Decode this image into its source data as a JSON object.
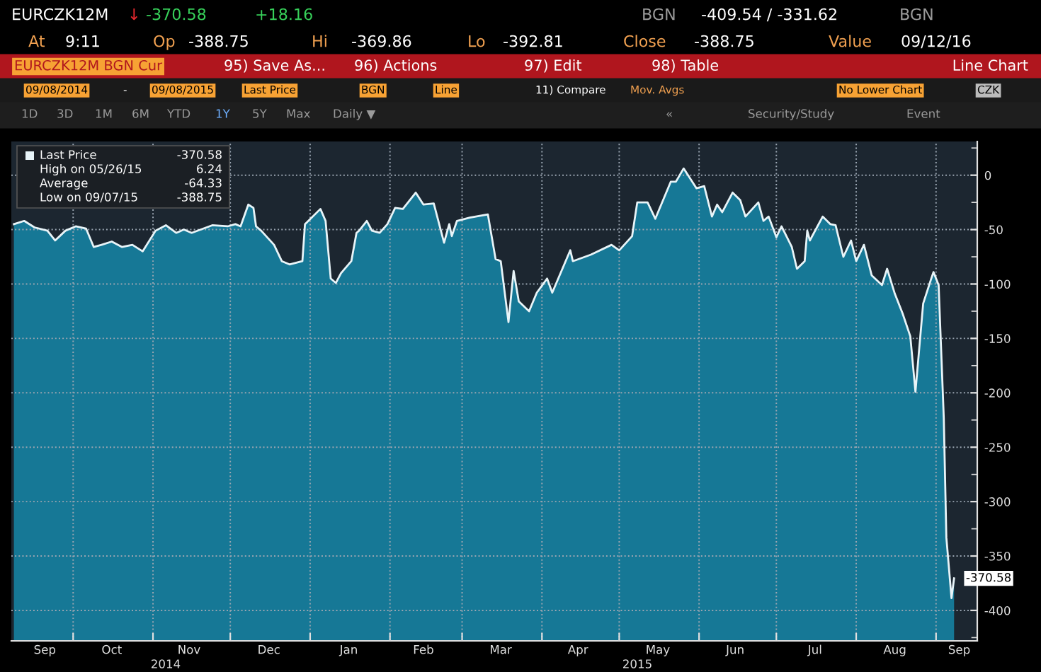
{
  "chart_data": {
    "type": "line",
    "title": "EURCZK12M",
    "x": [
      "2014-09-08",
      "2014-09-12",
      "2014-09-16",
      "2014-09-21",
      "2014-09-24",
      "2014-09-28",
      "2014-10-02",
      "2014-10-06",
      "2014-10-09",
      "2014-10-12",
      "2014-10-16",
      "2014-10-20",
      "2014-10-24",
      "2014-10-28",
      "2014-11-02",
      "2014-11-06",
      "2014-11-10",
      "2014-11-13",
      "2014-11-16",
      "2014-11-24",
      "2014-11-30",
      "2014-12-03",
      "2014-12-05",
      "2014-12-08",
      "2014-12-10",
      "2014-12-11",
      "2014-12-13",
      "2014-12-18",
      "2014-12-21",
      "2014-12-24",
      "2014-12-29",
      "2014-12-30",
      "2015-01-05",
      "2015-01-07",
      "2015-01-09",
      "2015-01-11",
      "2015-01-13",
      "2015-01-17",
      "2015-01-19",
      "2015-01-20",
      "2015-01-23",
      "2015-01-25",
      "2015-01-28",
      "2015-01-31",
      "2015-02-03",
      "2015-02-06",
      "2015-02-11",
      "2015-02-14",
      "2015-02-18",
      "2015-02-22",
      "2015-02-24",
      "2015-02-25",
      "2015-02-27",
      "2015-03-04",
      "2015-03-11",
      "2015-03-14",
      "2015-03-16",
      "2015-03-19",
      "2015-03-21",
      "2015-03-23",
      "2015-03-27",
      "2015-03-30",
      "2015-04-03",
      "2015-04-05",
      "2015-04-12",
      "2015-04-13",
      "2015-04-20",
      "2015-04-28",
      "2015-05-01",
      "2015-05-06",
      "2015-05-08",
      "2015-05-12",
      "2015-05-15",
      "2015-05-21",
      "2015-05-23",
      "2015-05-26",
      "2015-05-31",
      "2015-06-03",
      "2015-06-06",
      "2015-06-08",
      "2015-06-10",
      "2015-06-14",
      "2015-06-17",
      "2015-06-19",
      "2015-06-24",
      "2015-06-26",
      "2015-06-28",
      "2015-07-01",
      "2015-07-03",
      "2015-07-07",
      "2015-07-09",
      "2015-07-12",
      "2015-07-13",
      "2015-07-14",
      "2015-07-19",
      "2015-07-22",
      "2015-07-24",
      "2015-07-27",
      "2015-07-30",
      "2015-08-01",
      "2015-08-04",
      "2015-08-07",
      "2015-08-11",
      "2015-08-13",
      "2015-08-16",
      "2015-08-19",
      "2015-08-22",
      "2015-08-24",
      "2015-08-27",
      "2015-08-30",
      "2015-08-31",
      "2015-09-02",
      "2015-09-04",
      "2015-09-05",
      "2015-09-07",
      "2015-09-08"
    ],
    "series": [
      {
        "name": "Last Price",
        "color": "#e8f4f8",
        "values": [
          -45,
          -42,
          -48,
          -51,
          -60,
          -51,
          -47,
          -49,
          -66,
          -64,
          -61,
          -66,
          -64,
          -70,
          -51,
          -46,
          -53,
          -50,
          -53,
          -46,
          -47,
          -45,
          -47,
          -27,
          -30,
          -47,
          -51,
          -64,
          -79,
          -82,
          -79,
          -45,
          -31,
          -42,
          -95,
          -99,
          -90,
          -79,
          -53,
          -51,
          -42,
          -51,
          -53,
          -45,
          -30,
          -31,
          -16,
          -27,
          -26,
          -62,
          -45,
          -56,
          -42,
          -39,
          -36,
          -77,
          -79,
          -135,
          -88,
          -116,
          -125,
          -108,
          -95,
          -108,
          -69,
          -79,
          -73,
          -64,
          -69,
          -56,
          -25,
          -25,
          -40,
          -6,
          -6,
          6.24,
          -12,
          -10,
          -38,
          -27,
          -34,
          -16,
          -23,
          -38,
          -25,
          -42,
          -38,
          -57,
          -47,
          -66,
          -86,
          -79,
          -51,
          -60,
          -38,
          -45,
          -46,
          -75,
          -60,
          -79,
          -64,
          -92,
          -101,
          -86,
          -109,
          -127,
          -148,
          -199,
          -118,
          -96,
          -89,
          -101,
          -223,
          -333,
          -388.75,
          -370.58
        ]
      }
    ],
    "xlim": [
      "2014-09-07",
      "2015-09-17"
    ],
    "xticks": [
      {
        "value": "2014-09-20",
        "label": "Sep"
      },
      {
        "value": "2014-10-01",
        "label": null
      },
      {
        "value": "2014-10-16",
        "label": "Oct"
      },
      {
        "value": "2014-11-01",
        "label": null
      },
      {
        "value": "2014-11-15",
        "label": "Nov"
      },
      {
        "value": "2014-12-01",
        "label": null
      },
      {
        "value": "2014-12-16",
        "label": "Dec"
      },
      {
        "value": "2015-01-01",
        "label": null
      },
      {
        "value": "2015-01-16",
        "label": "Jan"
      },
      {
        "value": "2015-02-01",
        "label": null
      },
      {
        "value": "2015-02-14",
        "label": "Feb"
      },
      {
        "value": "2015-03-01",
        "label": null
      },
      {
        "value": "2015-03-16",
        "label": "Mar"
      },
      {
        "value": "2015-04-01",
        "label": null
      },
      {
        "value": "2015-04-15",
        "label": "Apr"
      },
      {
        "value": "2015-05-01",
        "label": null
      },
      {
        "value": "2015-05-16",
        "label": "May"
      },
      {
        "value": "2015-06-01",
        "label": null
      },
      {
        "value": "2015-06-15",
        "label": "Jun"
      },
      {
        "value": "2015-07-01",
        "label": null
      },
      {
        "value": "2015-07-16",
        "label": "Jul"
      },
      {
        "value": "2015-08-01",
        "label": null
      },
      {
        "value": "2015-08-16",
        "label": "Aug"
      },
      {
        "value": "2015-09-01",
        "label": null
      },
      {
        "value": "2015-09-10",
        "label": "Sep"
      }
    ],
    "ylim": [
      -428,
      31
    ],
    "yticks": [
      {
        "value": 25,
        "label": null
      },
      0,
      {
        "value": -25,
        "label": null
      },
      -50,
      {
        "value": -75,
        "label": null
      },
      -100,
      {
        "value": -125,
        "label": null
      },
      -150,
      {
        "value": -175,
        "label": null
      },
      -200,
      {
        "value": -225,
        "label": null
      },
      -250,
      {
        "value": -275,
        "label": null
      },
      -300,
      {
        "value": -325,
        "label": null
      },
      -350,
      {
        "value": -375,
        "label": null
      },
      -400,
      {
        "value": -425,
        "label": null
      }
    ],
    "grid": true,
    "legend": "top left",
    "annotations": [
      {
        "text": "-370.58",
        "x": "2015-09-08",
        "y": -370.58
      },
      "High on 05/26/15",
      "6.24",
      "Average",
      "-64.33",
      "Low on 09/07/15",
      "-388.75",
      "2014",
      "2015",
      "↓",
      "-370.58",
      "+18.16",
      "BGN",
      "-409.54 / -331.62",
      "BGN",
      "At",
      "9:11",
      "Op",
      "-388.75",
      "Hi",
      "-369.86",
      "Lo",
      "-392.81",
      "Close",
      "-388.75",
      "Value",
      "09/12/16",
      "EURCZK12M BGN Cur",
      "95) Save As...",
      "96) Actions",
      "97) Edit",
      "98) Table",
      "Line Chart",
      "09/08/2014",
      "-",
      "09/08/2015",
      "Last Price",
      "BGN",
      "Line",
      "11) Compare",
      "Mov. Avgs",
      "No Lower Chart",
      "CZK",
      "1D",
      "3D",
      "1M",
      "6M",
      "YTD",
      "1Y",
      "5Y",
      "Max",
      "Daily ▼",
      "«",
      "Security/Study",
      "Event"
    ]
  }
}
